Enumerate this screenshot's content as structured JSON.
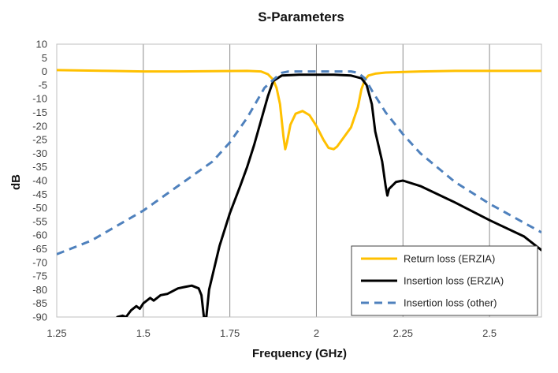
{
  "chart_data": {
    "type": "line",
    "title": "S-Parameters",
    "xlabel": "Frequency (GHz)",
    "ylabel": "dB",
    "xlim": [
      1.25,
      2.65
    ],
    "ylim": [
      -90,
      10
    ],
    "xticks": [
      1.25,
      1.5,
      1.75,
      2,
      2.25,
      2.5
    ],
    "xtick_labels": [
      "1.25",
      "1.5",
      "1.75",
      "2",
      "2.25",
      "2.5"
    ],
    "yticks": [
      10,
      5,
      0,
      -5,
      -10,
      -15,
      -20,
      -25,
      -30,
      -35,
      -40,
      -45,
      -50,
      -55,
      -60,
      -65,
      -70,
      -75,
      -80,
      -85,
      -90
    ],
    "ytick_labels": [
      "10",
      "5",
      "0",
      "-5",
      "-10",
      "-15",
      "-20",
      "-25",
      "-30",
      "-35",
      "-40",
      "-45",
      "-50",
      "-55",
      "-60",
      "-65",
      "-70",
      "-75",
      "-80",
      "-85",
      "-90"
    ],
    "grid": "vertical",
    "legend_position": "bottom-right",
    "series": [
      {
        "name": "Return loss (ERZIA)",
        "color": "#FFC000",
        "style": "solid",
        "x": [
          1.25,
          1.4,
          1.5,
          1.6,
          1.7,
          1.8,
          1.84,
          1.86,
          1.875,
          1.885,
          1.895,
          1.905,
          1.91,
          1.915,
          1.925,
          1.94,
          1.96,
          1.98,
          2.0,
          2.02,
          2.035,
          2.05,
          2.06,
          2.08,
          2.1,
          2.12,
          2.13,
          2.14,
          2.15,
          2.17,
          2.2,
          2.3,
          2.4,
          2.5,
          2.65
        ],
        "y": [
          0.5,
          0.2,
          0.0,
          0.0,
          0.1,
          0.2,
          0.0,
          -1.0,
          -3.0,
          -6.0,
          -12.0,
          -24.0,
          -28.5,
          -26.0,
          -19.5,
          -15.5,
          -14.5,
          -16.0,
          -20.0,
          -25.0,
          -28.0,
          -28.5,
          -27.5,
          -24.0,
          -20.5,
          -13.0,
          -6.5,
          -3.0,
          -1.5,
          -0.8,
          -0.4,
          0.0,
          0.2,
          0.2,
          0.2
        ]
      },
      {
        "name": "Insertion loss (ERZIA)",
        "color": "#000000",
        "style": "solid",
        "x": [
          1.425,
          1.44,
          1.45,
          1.465,
          1.48,
          1.49,
          1.5,
          1.52,
          1.53,
          1.55,
          1.57,
          1.6,
          1.62,
          1.64,
          1.66,
          1.668,
          1.675,
          1.682,
          1.69,
          1.72,
          1.75,
          1.78,
          1.8,
          1.82,
          1.84,
          1.86,
          1.875,
          1.9,
          1.95,
          2.0,
          2.05,
          2.1,
          2.13,
          2.145,
          2.16,
          2.17,
          2.19,
          2.2,
          2.205,
          2.21,
          2.23,
          2.25,
          2.3,
          2.4,
          2.5,
          2.6,
          2.65
        ],
        "y": [
          -90.0,
          -89.5,
          -90.0,
          -87.5,
          -86.0,
          -87.0,
          -85.0,
          -83.0,
          -84.0,
          -82.0,
          -81.5,
          -79.5,
          -79.0,
          -78.5,
          -79.5,
          -82.0,
          -90.0,
          -90.0,
          -80.0,
          -64.0,
          -52.0,
          -42.0,
          -35.0,
          -27.0,
          -18.0,
          -9.0,
          -3.5,
          -1.5,
          -1.2,
          -1.2,
          -1.2,
          -1.5,
          -2.5,
          -5.0,
          -12.0,
          -22.0,
          -33.0,
          -42.0,
          -45.5,
          -43.0,
          -40.5,
          -40.0,
          -42.0,
          -48.0,
          -54.5,
          -60.5,
          -65.5
        ]
      },
      {
        "name": "Insertion loss (other)",
        "color": "#4F81BD",
        "style": "dashed",
        "x": [
          1.25,
          1.35,
          1.5,
          1.6,
          1.7,
          1.75,
          1.8,
          1.85,
          1.88,
          1.9,
          1.92,
          1.95,
          2.0,
          2.05,
          2.1,
          2.12,
          2.14,
          2.16,
          2.2,
          2.25,
          2.3,
          2.4,
          2.5,
          2.55,
          2.65
        ],
        "y": [
          -67.0,
          -62.0,
          -51.0,
          -42.0,
          -33.0,
          -26.0,
          -17.0,
          -6.0,
          -2.5,
          -0.5,
          0.0,
          0.0,
          0.0,
          0.0,
          0.0,
          -0.5,
          -2.5,
          -7.0,
          -15.0,
          -23.0,
          -30.0,
          -40.5,
          -48.5,
          -52.0,
          -59.0
        ]
      }
    ]
  }
}
